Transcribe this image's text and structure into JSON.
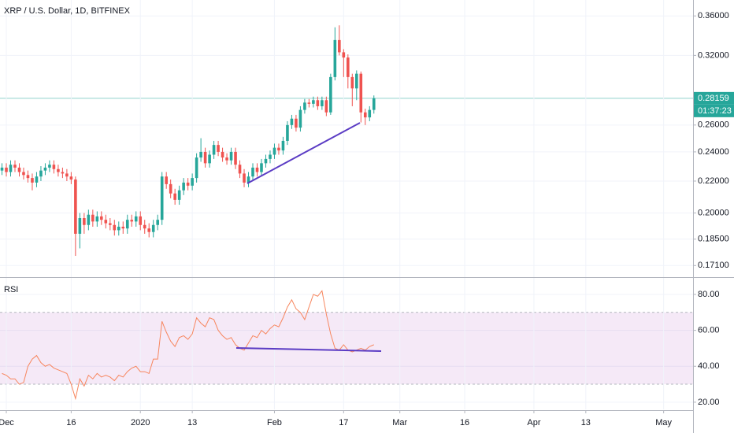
{
  "chart_data": [
    {
      "type": "candlestick",
      "title": "XRP / U.S. Dollar, 1D, BITFINEX",
      "up_color": "#26a69a",
      "down_color": "#ef5350",
      "log_scale": true,
      "grid": true,
      "last_price": 0.28159,
      "last_price_color": "#26a69a",
      "countdown": "01:37:23",
      "ylim": [
        0.1652,
        0.3775
      ],
      "yticks": [
        {
          "value": 0.36,
          "label": "0.36000"
        },
        {
          "value": 0.32,
          "label": "0.32000"
        },
        {
          "value": 0.26,
          "label": "0.26000"
        },
        {
          "value": 0.24,
          "label": "0.24000"
        },
        {
          "value": 0.22,
          "label": "0.22000"
        },
        {
          "value": 0.2,
          "label": "0.20000"
        },
        {
          "value": 0.185,
          "label": "0.18500"
        },
        {
          "value": 0.171,
          "label": "0.17100"
        }
      ],
      "xlim": [
        -1.46,
        158.8
      ],
      "x": [
        -1,
        0,
        1,
        2,
        3,
        4,
        5,
        6,
        7,
        8,
        9,
        10,
        11,
        12,
        13,
        14,
        15,
        16,
        17,
        18,
        19,
        20,
        21,
        22,
        23,
        24,
        25,
        26,
        27,
        28,
        29,
        30,
        31,
        32,
        33,
        34,
        35,
        36,
        37,
        38,
        39,
        40,
        41,
        42,
        43,
        44,
        45,
        46,
        47,
        48,
        49,
        50,
        51,
        52,
        53,
        54,
        55,
        56,
        57,
        58,
        59,
        60,
        61,
        62,
        63,
        64,
        65,
        66,
        67,
        68,
        69,
        70,
        71,
        72,
        73,
        74,
        75,
        76,
        77,
        78,
        79,
        80,
        81,
        82,
        83,
        84,
        85
      ],
      "open": [
        0.227,
        0.229,
        0.226,
        0.231,
        0.229,
        0.226,
        0.224,
        0.222,
        0.219,
        0.223,
        0.227,
        0.229,
        0.231,
        0.228,
        0.226,
        0.225,
        0.223,
        0.221,
        0.188,
        0.197,
        0.193,
        0.199,
        0.195,
        0.198,
        0.196,
        0.194,
        0.193,
        0.19,
        0.192,
        0.191,
        0.196,
        0.195,
        0.198,
        0.193,
        0.191,
        0.189,
        0.193,
        0.196,
        0.223,
        0.218,
        0.212,
        0.208,
        0.214,
        0.219,
        0.217,
        0.222,
        0.236,
        0.24,
        0.232,
        0.238,
        0.245,
        0.24,
        0.236,
        0.234,
        0.24,
        0.231,
        0.225,
        0.219,
        0.223,
        0.229,
        0.226,
        0.232,
        0.235,
        0.238,
        0.243,
        0.241,
        0.248,
        0.26,
        0.265,
        0.258,
        0.272,
        0.278,
        0.277,
        0.28,
        0.275,
        0.28,
        0.27,
        0.3,
        0.335,
        0.323,
        0.318,
        0.3,
        0.29,
        0.303,
        0.27,
        0.266,
        0.272
      ],
      "high": [
        0.232,
        0.232,
        0.234,
        0.234,
        0.232,
        0.229,
        0.227,
        0.225,
        0.226,
        0.23,
        0.232,
        0.234,
        0.234,
        0.231,
        0.229,
        0.228,
        0.226,
        0.223,
        0.2,
        0.2,
        0.202,
        0.202,
        0.201,
        0.201,
        0.199,
        0.197,
        0.196,
        0.195,
        0.195,
        0.199,
        0.199,
        0.201,
        0.201,
        0.196,
        0.194,
        0.196,
        0.199,
        0.226,
        0.226,
        0.221,
        0.215,
        0.217,
        0.222,
        0.222,
        0.225,
        0.239,
        0.25,
        0.243,
        0.241,
        0.248,
        0.248,
        0.243,
        0.239,
        0.243,
        0.243,
        0.234,
        0.228,
        0.226,
        0.232,
        0.232,
        0.235,
        0.238,
        0.241,
        0.246,
        0.246,
        0.251,
        0.263,
        0.268,
        0.268,
        0.275,
        0.281,
        0.281,
        0.283,
        0.283,
        0.283,
        0.283,
        0.303,
        0.348,
        0.35,
        0.326,
        0.321,
        0.303,
        0.306,
        0.305,
        0.273,
        0.275,
        0.284
      ],
      "low": [
        0.224,
        0.223,
        0.223,
        0.226,
        0.223,
        0.221,
        0.219,
        0.214,
        0.216,
        0.22,
        0.224,
        0.226,
        0.225,
        0.223,
        0.222,
        0.22,
        0.218,
        0.176,
        0.18,
        0.188,
        0.19,
        0.192,
        0.192,
        0.193,
        0.191,
        0.19,
        0.187,
        0.187,
        0.188,
        0.188,
        0.192,
        0.192,
        0.19,
        0.188,
        0.186,
        0.186,
        0.19,
        0.193,
        0.215,
        0.209,
        0.205,
        0.205,
        0.211,
        0.214,
        0.214,
        0.219,
        0.233,
        0.229,
        0.229,
        0.235,
        0.237,
        0.233,
        0.231,
        0.231,
        0.228,
        0.222,
        0.216,
        0.216,
        0.22,
        0.223,
        0.223,
        0.229,
        0.232,
        0.235,
        0.238,
        0.238,
        0.245,
        0.257,
        0.255,
        0.255,
        0.269,
        0.274,
        0.274,
        0.272,
        0.272,
        0.267,
        0.268,
        0.297,
        0.32,
        0.3,
        0.29,
        0.275,
        0.28,
        0.262,
        0.26,
        0.263,
        0.269
      ],
      "close": [
        0.229,
        0.226,
        0.231,
        0.229,
        0.226,
        0.224,
        0.222,
        0.219,
        0.223,
        0.227,
        0.229,
        0.231,
        0.228,
        0.226,
        0.225,
        0.223,
        0.221,
        0.188,
        0.197,
        0.193,
        0.199,
        0.195,
        0.198,
        0.196,
        0.194,
        0.193,
        0.19,
        0.192,
        0.191,
        0.196,
        0.195,
        0.198,
        0.193,
        0.191,
        0.189,
        0.193,
        0.196,
        0.223,
        0.218,
        0.212,
        0.208,
        0.214,
        0.219,
        0.217,
        0.222,
        0.236,
        0.24,
        0.232,
        0.238,
        0.245,
        0.24,
        0.236,
        0.234,
        0.24,
        0.231,
        0.225,
        0.219,
        0.223,
        0.229,
        0.226,
        0.232,
        0.235,
        0.238,
        0.243,
        0.241,
        0.248,
        0.26,
        0.265,
        0.258,
        0.272,
        0.278,
        0.277,
        0.28,
        0.275,
        0.28,
        0.27,
        0.3,
        0.335,
        0.323,
        0.318,
        0.3,
        0.29,
        0.303,
        0.27,
        0.266,
        0.272,
        0.28159
      ]
    },
    {
      "type": "line",
      "title": "RSI",
      "color": "#f7865e",
      "band": [
        30,
        70
      ],
      "band_color": "#9c27b0",
      "grid": true,
      "ylim": [
        16,
        89.2
      ],
      "yticks": [
        {
          "value": 80,
          "label": "80.00"
        },
        {
          "value": 60,
          "label": "60.00"
        },
        {
          "value": 40,
          "label": "40.00"
        },
        {
          "value": 20,
          "label": "20.00"
        }
      ],
      "xlim": [
        -1.46,
        158.8
      ],
      "xticks": [
        {
          "value": 0,
          "label": "Dec"
        },
        {
          "value": 15,
          "label": "16"
        },
        {
          "value": 31,
          "label": "2020"
        },
        {
          "value": 43,
          "label": "13"
        },
        {
          "value": 62,
          "label": "Feb"
        },
        {
          "value": 78,
          "label": "17"
        },
        {
          "value": 91,
          "label": "Mar"
        },
        {
          "value": 106,
          "label": "16"
        },
        {
          "value": 122,
          "label": "Apr"
        },
        {
          "value": 134,
          "label": "13"
        },
        {
          "value": 152,
          "label": "May"
        }
      ],
      "x": [
        -1,
        0,
        1,
        2,
        3,
        4,
        5,
        6,
        7,
        8,
        9,
        10,
        11,
        12,
        13,
        14,
        15,
        16,
        17,
        18,
        19,
        20,
        21,
        22,
        23,
        24,
        25,
        26,
        27,
        28,
        29,
        30,
        31,
        32,
        33,
        34,
        35,
        36,
        37,
        38,
        39,
        40,
        41,
        42,
        43,
        44,
        45,
        46,
        47,
        48,
        49,
        50,
        51,
        52,
        53,
        54,
        55,
        56,
        57,
        58,
        59,
        60,
        61,
        62,
        63,
        64,
        65,
        66,
        67,
        68,
        69,
        70,
        71,
        72,
        73,
        74,
        75,
        76,
        77,
        78,
        79,
        80,
        81,
        82,
        83,
        84,
        85
      ],
      "values": [
        36,
        35,
        33,
        33,
        30,
        31,
        40,
        44,
        46,
        42,
        40,
        41,
        39,
        38,
        37,
        36,
        30,
        22,
        33,
        29,
        35,
        33,
        36,
        34,
        35,
        34,
        32,
        35,
        34,
        37,
        39,
        40,
        37,
        37,
        36,
        44,
        44,
        65,
        59,
        54,
        51,
        56,
        57,
        55,
        58,
        67,
        64,
        62,
        67,
        66,
        60,
        57,
        55,
        56,
        52,
        50,
        49,
        53,
        57,
        56,
        60,
        58,
        61,
        63,
        62,
        67,
        73,
        77,
        72,
        70,
        66,
        73,
        80,
        79,
        82,
        69,
        58,
        50,
        49,
        52,
        49,
        48,
        49,
        50,
        49,
        51,
        52
      ]
    }
  ]
}
